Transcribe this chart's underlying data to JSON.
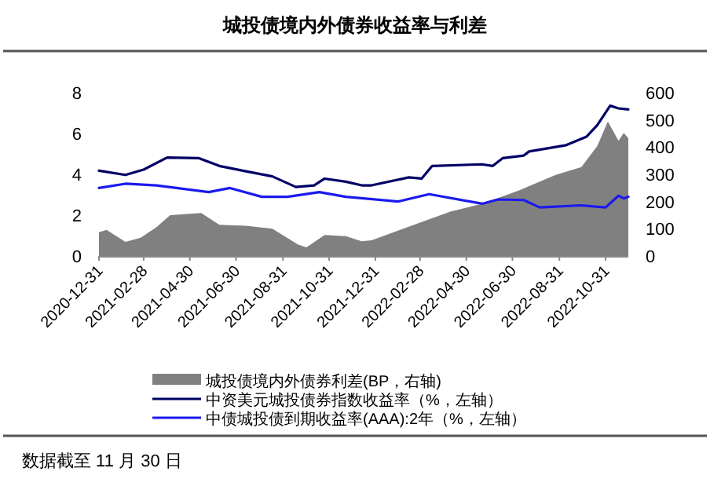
{
  "chart_data": {
    "type": "line",
    "title": "城投债境内外债券收益率与利差",
    "xlim": [
      "2020-12-31",
      "2022-11-30"
    ],
    "xticks": [
      "2020-12-31",
      "2021-02-28",
      "2021-04-30",
      "2021-06-30",
      "2021-08-31",
      "2021-10-31",
      "2021-12-31",
      "2022-02-28",
      "2022-04-30",
      "2022-06-30",
      "2022-08-31",
      "2022-10-31"
    ],
    "ylim": [
      0,
      8
    ],
    "yticks": [
      0,
      2,
      4,
      6,
      8
    ],
    "y2lim": [
      0,
      600
    ],
    "y2ticks": [
      0,
      100,
      200,
      300,
      400,
      500,
      600
    ],
    "legend": "bottom",
    "grid": false,
    "series": [
      {
        "name": "城投债境内外债券利差(BP，右轴)",
        "type": "area",
        "axis": "y2",
        "color": "#808080",
        "x": [
          "2020-12-31",
          "2021-01-10",
          "2021-02-04",
          "2021-02-24",
          "2021-03-17",
          "2021-04-04",
          "2021-05-15",
          "2021-06-08",
          "2021-07-13",
          "2021-08-17",
          "2021-09-20",
          "2021-10-01",
          "2021-10-25",
          "2021-11-22",
          "2021-12-13",
          "2021-12-26",
          "2022-02-20",
          "2022-04-09",
          "2022-05-21",
          "2022-07-08",
          "2022-08-26",
          "2022-09-29",
          "2022-10-20",
          "2022-11-03",
          "2022-11-17",
          "2022-11-24",
          "2022-11-30"
        ],
        "values": [
          87,
          96,
          52,
          67,
          106,
          150,
          158,
          115,
          111,
          100,
          42,
          32,
          77,
          73,
          54,
          58,
          115,
          163,
          192,
          240,
          298,
          327,
          404,
          494,
          423,
          452,
          433
        ]
      },
      {
        "name": "中资美元城投债券指数收益率（%，左轴）",
        "color": "#000066",
        "x": [
          "2020-12-31",
          "2021-02-04",
          "2021-02-28",
          "2021-03-31",
          "2021-05-12",
          "2021-06-08",
          "2021-07-13",
          "2021-08-17",
          "2021-09-17",
          "2021-10-11",
          "2021-10-25",
          "2021-11-22",
          "2021-12-13",
          "2021-12-26",
          "2022-02-13",
          "2022-03-02",
          "2022-03-16",
          "2022-05-21",
          "2022-06-04",
          "2022-06-17",
          "2022-07-15",
          "2022-07-22",
          "2022-09-09",
          "2022-10-06",
          "2022-10-20",
          "2022-11-06",
          "2022-11-17",
          "2022-11-30"
        ],
        "values": [
          4.18,
          3.97,
          4.23,
          4.82,
          4.79,
          4.41,
          4.15,
          3.9,
          3.38,
          3.46,
          3.79,
          3.64,
          3.46,
          3.46,
          3.85,
          3.79,
          4.41,
          4.49,
          4.41,
          4.79,
          4.92,
          5.12,
          5.43,
          5.85,
          6.41,
          7.36,
          7.23,
          7.18
        ]
      },
      {
        "name": "中债城投债到期收益率(AAA):2年（%，左轴）",
        "color": "#1a1aee",
        "x": [
          "2020-12-31",
          "2021-02-04",
          "2021-03-17",
          "2021-05-25",
          "2021-06-22",
          "2021-08-03",
          "2021-09-06",
          "2021-10-18",
          "2021-11-22",
          "2022-01-30",
          "2022-03-12",
          "2022-05-21",
          "2022-06-11",
          "2022-07-15",
          "2022-08-05",
          "2022-09-29",
          "2022-10-31",
          "2022-11-17",
          "2022-11-24",
          "2022-11-30"
        ],
        "values": [
          3.33,
          3.54,
          3.46,
          3.13,
          3.33,
          2.9,
          2.9,
          3.13,
          2.9,
          2.67,
          3.03,
          2.56,
          2.77,
          2.74,
          2.38,
          2.48,
          2.38,
          2.95,
          2.82,
          2.9
        ]
      }
    ],
    "annotations": [
      "数据截至 11 月 30 日"
    ]
  }
}
